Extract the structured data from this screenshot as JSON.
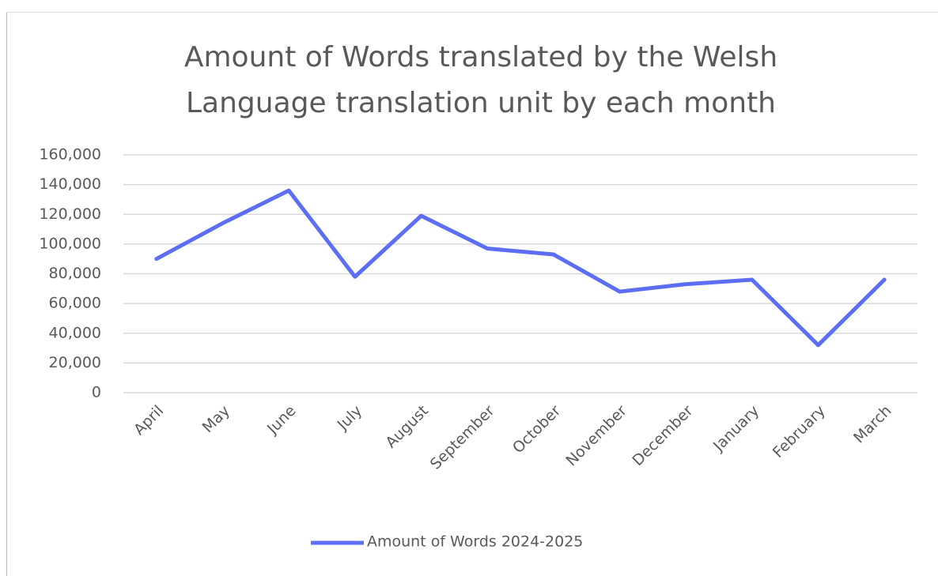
{
  "chart_data": {
    "type": "line",
    "title": "Amount of Words translated by the Welsh Language translation unit by each month",
    "categories": [
      "April",
      "May",
      "June",
      "July",
      "August",
      "September",
      "October",
      "November",
      "December",
      "January",
      "February",
      "March"
    ],
    "series": [
      {
        "name": "Amount of Words 2024-2025",
        "color": "#5b6ef5",
        "values": [
          90000,
          114000,
          136000,
          78000,
          119000,
          97000,
          93000,
          68000,
          73000,
          76000,
          32000,
          76000
        ]
      }
    ],
    "ylim": [
      0,
      160000
    ],
    "yticks": [
      0,
      {
        "value": 20000,
        "label": "20,000"
      },
      {
        "value": 40000,
        "label": "40,000"
      },
      {
        "value": 60000,
        "label": "60,000"
      },
      {
        "value": 80000,
        "label": "80,000"
      },
      {
        "value": 100000,
        "label": "100,000"
      },
      {
        "value": 120000,
        "label": "120,000"
      },
      {
        "value": 140000,
        "label": "140,000"
      },
      {
        "value": 160000,
        "label": "160,000"
      }
    ],
    "grid": true,
    "legend": "bottom"
  }
}
